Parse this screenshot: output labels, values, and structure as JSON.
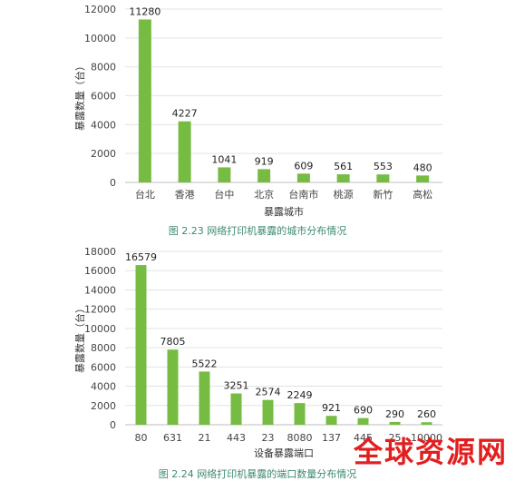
{
  "chart_data": [
    {
      "type": "bar",
      "categories": [
        "台北",
        "香港",
        "台中",
        "北京",
        "台南市",
        "桃源",
        "新竹",
        "高松"
      ],
      "values": [
        11280,
        4227,
        1041,
        919,
        609,
        561,
        553,
        480
      ],
      "ylabel": "暴露数量（台）",
      "xlabel": "暴露城市",
      "ylim": [
        0,
        12000
      ],
      "yticks": [
        0,
        2000,
        4000,
        6000,
        8000,
        10000,
        12000
      ],
      "bar_color": "#76bc43",
      "grid": true,
      "caption": "图 2.23  网络打印机暴露的城市分布情况"
    },
    {
      "type": "bar",
      "categories": [
        "80",
        "631",
        "21",
        "443",
        "23",
        "8080",
        "137",
        "445",
        "25",
        "10000"
      ],
      "values": [
        16579,
        7805,
        5522,
        3251,
        2574,
        2249,
        921,
        690,
        290,
        260
      ],
      "ylabel": "暴露数量（台）",
      "xlabel": "设备暴露端口",
      "ylim": [
        0,
        18000
      ],
      "yticks": [
        0,
        2000,
        4000,
        6000,
        8000,
        10000,
        12000,
        14000,
        16000,
        18000
      ],
      "bar_color": "#76bc43",
      "grid": true,
      "caption": "图 2.24  网络打印机暴露的端口数量分布情况"
    }
  ],
  "watermark": "全球资源网"
}
